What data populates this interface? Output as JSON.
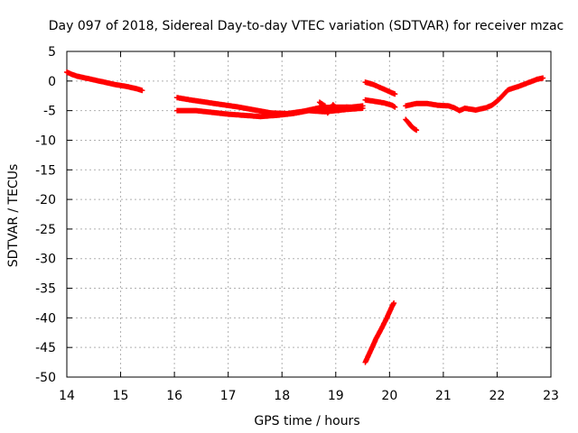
{
  "chart_data": {
    "type": "scatter",
    "title": "Day 097 of 2018, Sidereal Day-to-day VTEC variation (SDTVAR) for receiver mzac",
    "xlabel": "GPS time / hours",
    "ylabel": "SDTVAR / TECUs",
    "xlim": [
      14,
      23
    ],
    "ylim": [
      -50,
      5
    ],
    "xticks": [
      "14",
      "15",
      "16",
      "17",
      "18",
      "19",
      "20",
      "21",
      "22",
      "23"
    ],
    "yticks": [
      "5",
      "0",
      "-5",
      "-10",
      "-15",
      "-20",
      "-25",
      "-30",
      "-35",
      "-40",
      "-45",
      "-50"
    ],
    "grid": true,
    "colors": {
      "series": "#ff0000",
      "grid": "#b0b0b0",
      "axis": "#000000"
    },
    "series": [
      {
        "name": "SDTVAR",
        "marker": "+",
        "segments": [
          [
            [
              14.0,
              1.5
            ],
            [
              14.1,
              1.1
            ],
            [
              14.2,
              0.8
            ],
            [
              14.3,
              0.6
            ],
            [
              14.5,
              0.2
            ],
            [
              14.7,
              -0.2
            ],
            [
              14.9,
              -0.6
            ],
            [
              15.1,
              -0.9
            ],
            [
              15.3,
              -1.3
            ],
            [
              15.4,
              -1.6
            ]
          ],
          [
            [
              16.05,
              -2.8
            ],
            [
              16.3,
              -3.2
            ],
            [
              16.6,
              -3.6
            ],
            [
              16.9,
              -4.0
            ],
            [
              17.2,
              -4.4
            ],
            [
              17.5,
              -4.9
            ],
            [
              17.8,
              -5.4
            ],
            [
              18.1,
              -5.5
            ],
            [
              18.4,
              -5.1
            ],
            [
              18.7,
              -4.5
            ],
            [
              19.0,
              -4.4
            ],
            [
              19.3,
              -4.4
            ],
            [
              19.5,
              -4.2
            ]
          ],
          [
            [
              16.05,
              -5.0
            ],
            [
              16.4,
              -5.0
            ],
            [
              16.7,
              -5.3
            ],
            [
              17.0,
              -5.6
            ],
            [
              17.3,
              -5.8
            ],
            [
              17.6,
              -6.0
            ],
            [
              17.9,
              -5.8
            ],
            [
              18.2,
              -5.5
            ],
            [
              18.5,
              -5.0
            ],
            [
              18.8,
              -5.2
            ],
            [
              19.0,
              -5.0
            ],
            [
              19.2,
              -4.8
            ],
            [
              19.5,
              -4.6
            ]
          ],
          [
            [
              18.7,
              -3.6
            ],
            [
              18.8,
              -4.2
            ],
            [
              18.85,
              -5.4
            ],
            [
              18.95,
              -4.0
            ],
            [
              19.05,
              -5.0
            ],
            [
              19.2,
              -4.4
            ],
            [
              19.35,
              -4.6
            ]
          ],
          [
            [
              19.55,
              -0.2
            ],
            [
              19.7,
              -0.6
            ],
            [
              19.85,
              -1.2
            ],
            [
              20.0,
              -1.8
            ],
            [
              20.1,
              -2.2
            ]
          ],
          [
            [
              19.55,
              -3.2
            ],
            [
              19.7,
              -3.4
            ],
            [
              19.9,
              -3.7
            ],
            [
              20.05,
              -4.1
            ],
            [
              20.1,
              -4.4
            ]
          ],
          [
            [
              19.55,
              -47.5
            ],
            [
              19.65,
              -45.5
            ],
            [
              19.75,
              -43.5
            ],
            [
              19.85,
              -41.8
            ],
            [
              19.95,
              -40.0
            ],
            [
              20.05,
              -38.0
            ],
            [
              20.08,
              -37.5
            ]
          ],
          [
            [
              20.3,
              -6.5
            ],
            [
              20.35,
              -7.0
            ],
            [
              20.4,
              -7.6
            ],
            [
              20.45,
              -8.0
            ],
            [
              20.5,
              -8.3
            ]
          ],
          [
            [
              20.3,
              -4.2
            ],
            [
              20.5,
              -3.8
            ],
            [
              20.7,
              -3.8
            ],
            [
              20.9,
              -4.1
            ],
            [
              21.1,
              -4.2
            ],
            [
              21.2,
              -4.5
            ],
            [
              21.3,
              -5.0
            ],
            [
              21.4,
              -4.6
            ],
            [
              21.6,
              -4.9
            ],
            [
              21.8,
              -4.5
            ],
            [
              21.9,
              -4.1
            ],
            [
              22.0,
              -3.4
            ],
            [
              22.1,
              -2.5
            ],
            [
              22.2,
              -1.5
            ],
            [
              22.4,
              -0.9
            ],
            [
              22.6,
              -0.2
            ],
            [
              22.75,
              0.3
            ],
            [
              22.85,
              0.5
            ]
          ]
        ]
      }
    ]
  }
}
